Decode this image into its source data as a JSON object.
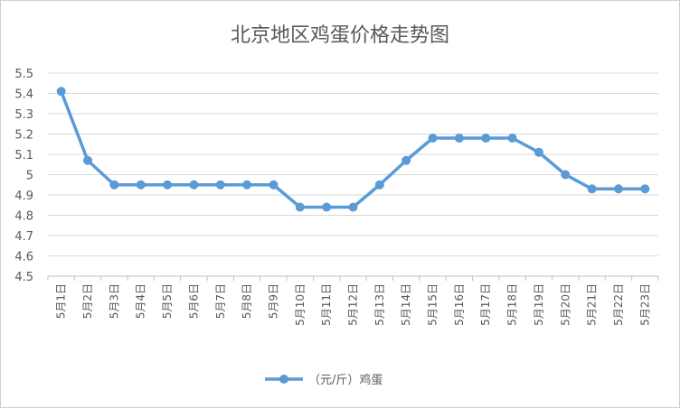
{
  "chart_data": {
    "type": "line",
    "title": "北京地区鸡蛋价格走势图",
    "categories": [
      "5月1日",
      "5月2日",
      "5月3日",
      "5月4日",
      "5月5日",
      "5月6日",
      "5月7日",
      "5月8日",
      "5月9日",
      "5月10日",
      "5月11日",
      "5月12日",
      "5月13日",
      "5月14日",
      "5月15日",
      "5月16日",
      "5月17日",
      "5月18日",
      "5月19日",
      "5月20日",
      "5月21日",
      "5月22日",
      "5月23日"
    ],
    "series": [
      {
        "name": "（元/斤）鸡蛋",
        "values": [
          5.41,
          5.07,
          4.95,
          4.95,
          4.95,
          4.95,
          4.95,
          4.95,
          4.95,
          4.84,
          4.84,
          4.84,
          4.95,
          5.07,
          5.18,
          5.18,
          5.18,
          5.18,
          5.11,
          5.0,
          4.93,
          4.93,
          4.93
        ]
      }
    ],
    "yticks": [
      "4.5",
      "4.6",
      "4.7",
      "4.8",
      "4.9",
      "5",
      "5.1",
      "5.2",
      "5.3",
      "5.4",
      "5.5"
    ],
    "ylim": [
      4.5,
      5.5
    ],
    "grid": true,
    "legend": "bottom",
    "color": "#5b9bd5"
  }
}
